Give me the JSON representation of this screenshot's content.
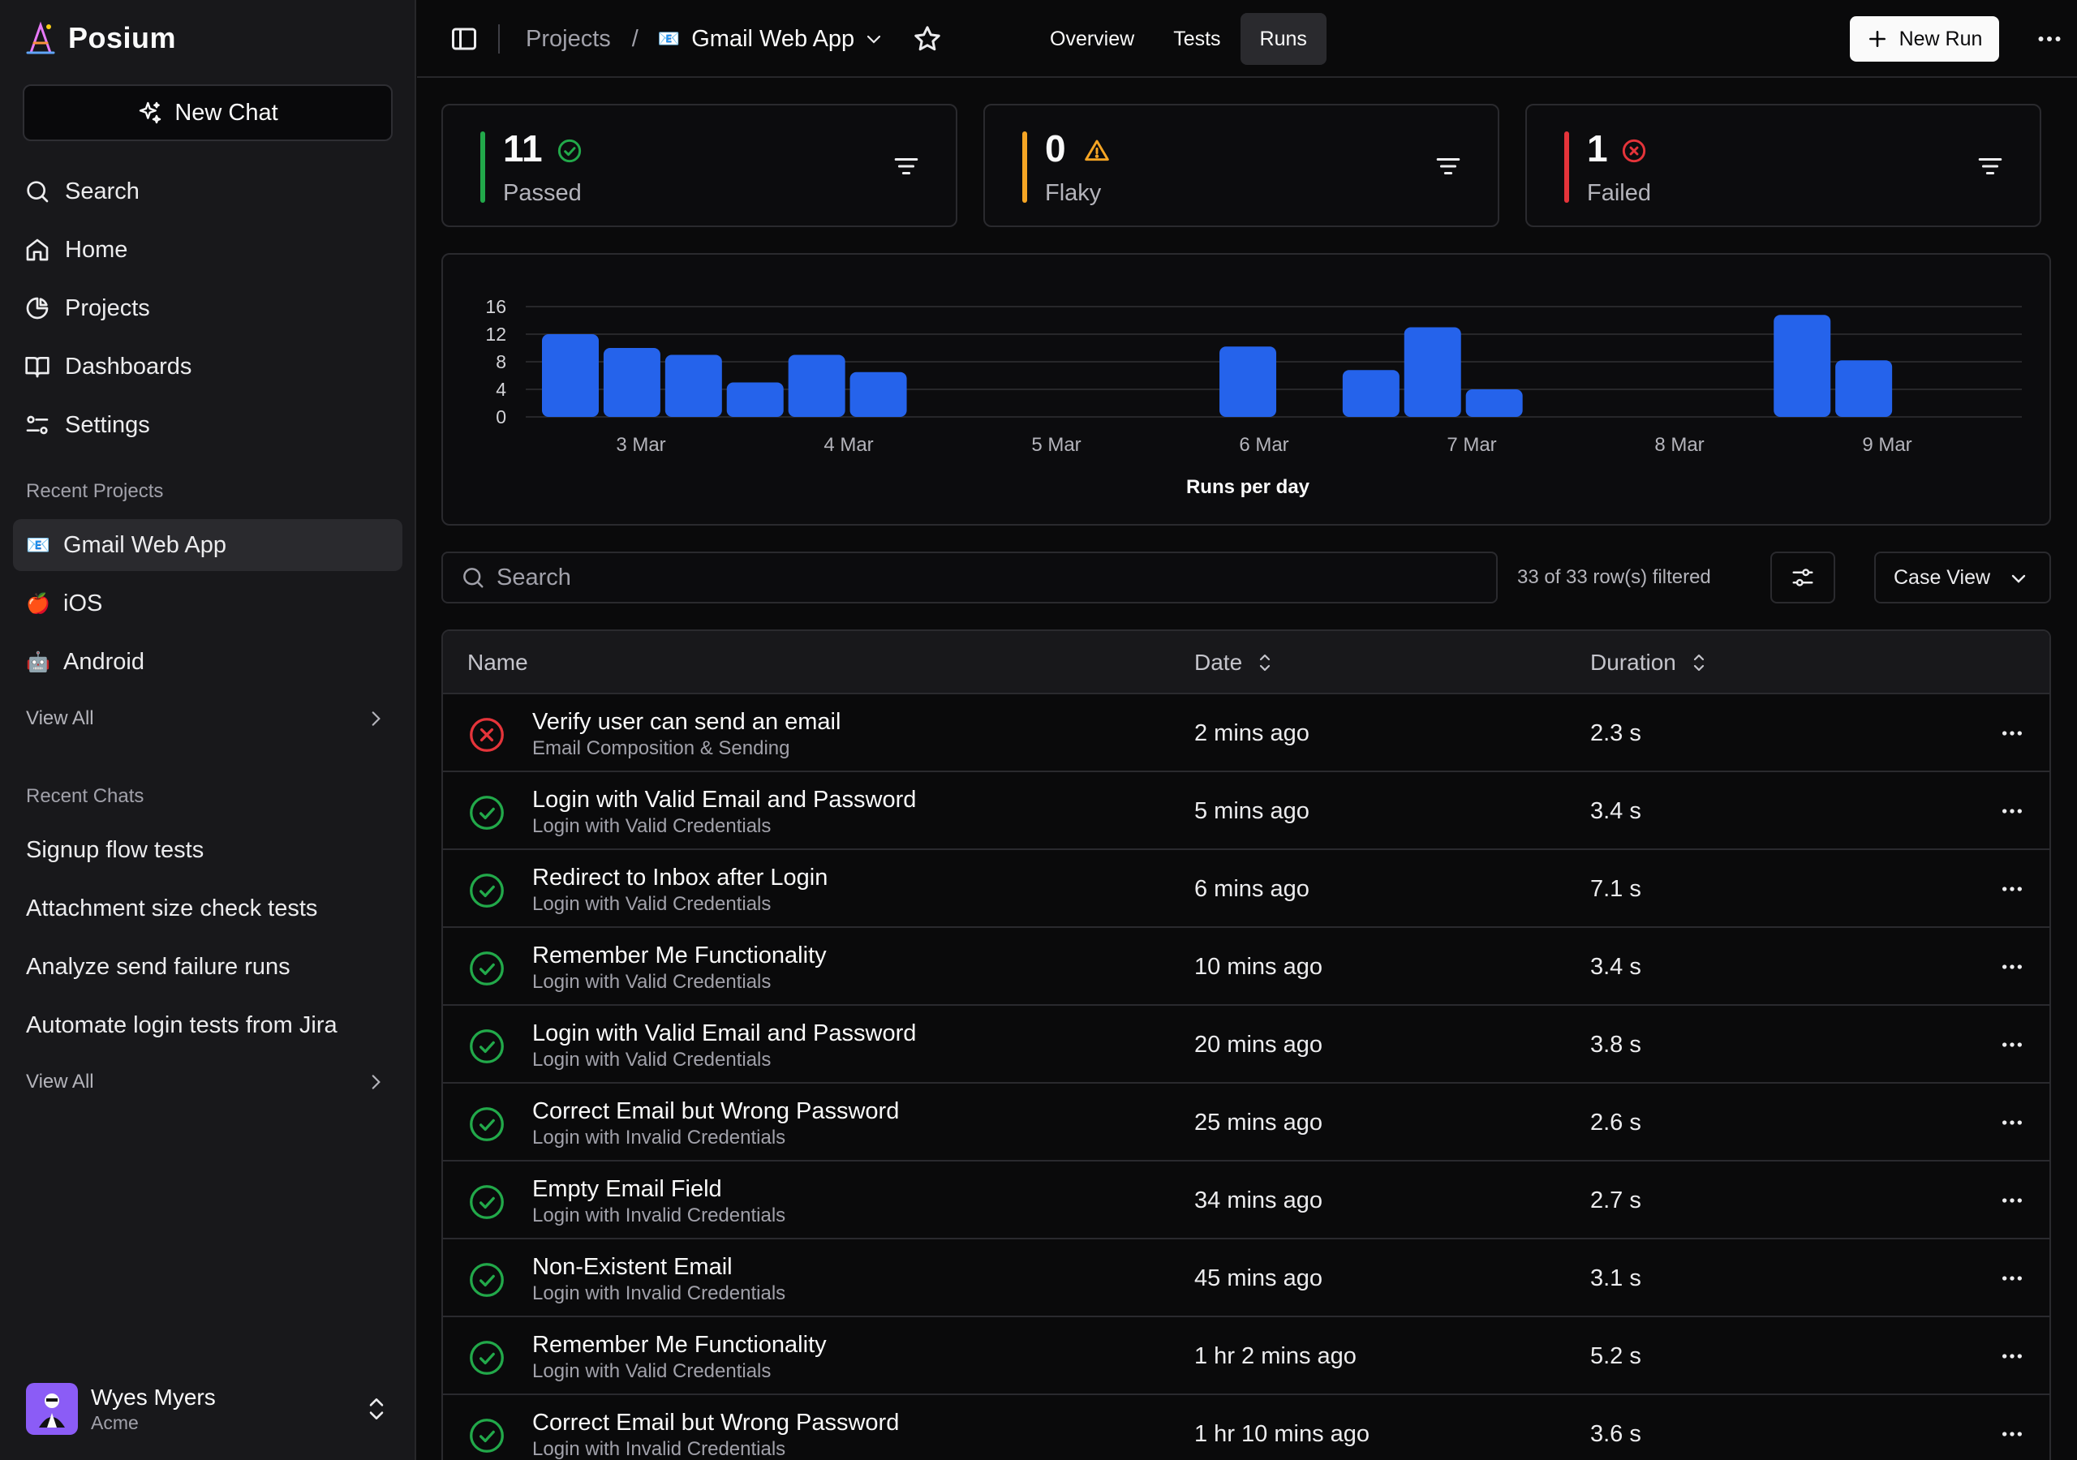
{
  "brand": {
    "name": "Posium"
  },
  "sidebar": {
    "new_chat_label": "New Chat",
    "nav": [
      {
        "label": "Search",
        "icon": "search-icon"
      },
      {
        "label": "Home",
        "icon": "home-icon"
      },
      {
        "label": "Projects",
        "icon": "pie-chart-icon"
      },
      {
        "label": "Dashboards",
        "icon": "book-open-icon"
      },
      {
        "label": "Settings",
        "icon": "settings-icon"
      }
    ],
    "recent_projects_label": "Recent Projects",
    "projects": [
      {
        "emoji": "📧",
        "label": "Gmail Web App"
      },
      {
        "emoji": "🍎",
        "label": "iOS"
      },
      {
        "emoji": "🤖",
        "label": "Android"
      }
    ],
    "projects_view_all": "View All",
    "recent_chats_label": "Recent Chats",
    "chats": [
      "Signup flow tests",
      "Attachment size check tests",
      "Analyze send failure runs",
      "Automate login tests from Jira"
    ],
    "chats_view_all": "View All",
    "user": {
      "name": "Wyes Myers",
      "org": "Acme"
    }
  },
  "topbar": {
    "breadcrumb_root": "Projects",
    "breadcrumb_sep": "/",
    "project_emoji": "📧",
    "project_name": "Gmail Web App",
    "tabs": [
      "Overview",
      "Tests",
      "Runs"
    ],
    "active_tab": "Runs",
    "new_run_label": "New Run"
  },
  "stats": [
    {
      "value": "11",
      "label": "Passed",
      "color": "#22a94a",
      "icon": "check-circle-icon"
    },
    {
      "value": "0",
      "label": "Flaky",
      "color": "#f5a524",
      "icon": "warning-triangle-icon"
    },
    {
      "value": "1",
      "label": "Failed",
      "color": "#e5343a",
      "icon": "x-circle-icon"
    }
  ],
  "chart_data": {
    "type": "bar",
    "title": "",
    "xlabel": "Runs per day",
    "ylabel": "",
    "yticks": [
      0,
      4,
      8,
      12,
      16
    ],
    "ylim": [
      0,
      16
    ],
    "xticks": [
      "3 Mar",
      "4 Mar",
      "5 Mar",
      "6 Mar",
      "7 Mar",
      "8 Mar",
      "9 Mar"
    ],
    "bar_color": "#2563eb",
    "grid": true,
    "bars": [
      {
        "day": "3 Mar",
        "slot": 0,
        "value": 12
      },
      {
        "day": "3 Mar",
        "slot": 1,
        "value": 10
      },
      {
        "day": "3 Mar",
        "slot": 2,
        "value": 9
      },
      {
        "day": "4 Mar",
        "slot": 3,
        "value": 5
      },
      {
        "day": "4 Mar",
        "slot": 4,
        "value": 9
      },
      {
        "day": "4 Mar",
        "slot": 5,
        "value": 6.5
      },
      {
        "day": "6 Mar",
        "slot": 11,
        "value": 10.2
      },
      {
        "day": "7 Mar",
        "slot": 13,
        "value": 6.8
      },
      {
        "day": "7 Mar",
        "slot": 14,
        "value": 13
      },
      {
        "day": "7 Mar",
        "slot": 15,
        "value": 4
      },
      {
        "day": "9 Mar",
        "slot": 20,
        "value": 14.8
      },
      {
        "day": "9 Mar",
        "slot": 21,
        "value": 8.2
      }
    ]
  },
  "filters": {
    "search_placeholder": "Search",
    "row_count": "33 of 33 row(s) filtered",
    "view_select": "Case View"
  },
  "table": {
    "columns": {
      "name": "Name",
      "date": "Date",
      "duration": "Duration"
    },
    "rows": [
      {
        "status": "failed",
        "name": "Verify user can send an email",
        "group": "Email Composition & Sending",
        "date": "2 mins ago",
        "duration": "2.3 s"
      },
      {
        "status": "passed",
        "name": "Login with Valid Email and Password",
        "group": "Login with Valid Credentials",
        "date": "5 mins ago",
        "duration": "3.4 s"
      },
      {
        "status": "passed",
        "name": "Redirect to Inbox after Login",
        "group": "Login with Valid Credentials",
        "date": "6 mins ago",
        "duration": "7.1 s"
      },
      {
        "status": "passed",
        "name": "Remember Me Functionality",
        "group": "Login with Valid Credentials",
        "date": "10 mins ago",
        "duration": "3.4 s"
      },
      {
        "status": "passed",
        "name": "Login with Valid Email and Password",
        "group": "Login with Valid Credentials",
        "date": "20 mins ago",
        "duration": "3.8 s"
      },
      {
        "status": "passed",
        "name": "Correct Email but Wrong Password",
        "group": "Login with Invalid Credentials",
        "date": "25 mins ago",
        "duration": "2.6 s"
      },
      {
        "status": "passed",
        "name": "Empty Email Field",
        "group": "Login with Invalid Credentials",
        "date": "34 mins ago",
        "duration": "2.7 s"
      },
      {
        "status": "passed",
        "name": "Non-Existent Email",
        "group": "Login with Invalid Credentials",
        "date": "45 mins ago",
        "duration": "3.1 s"
      },
      {
        "status": "passed",
        "name": "Remember Me Functionality",
        "group": "Login with Valid Credentials",
        "date": "1 hr 2 mins ago",
        "duration": "5.2 s"
      },
      {
        "status": "passed",
        "name": "Correct Email but Wrong Password",
        "group": "Login with Invalid Credentials",
        "date": "1 hr 10 mins ago",
        "duration": "3.6 s"
      }
    ]
  }
}
